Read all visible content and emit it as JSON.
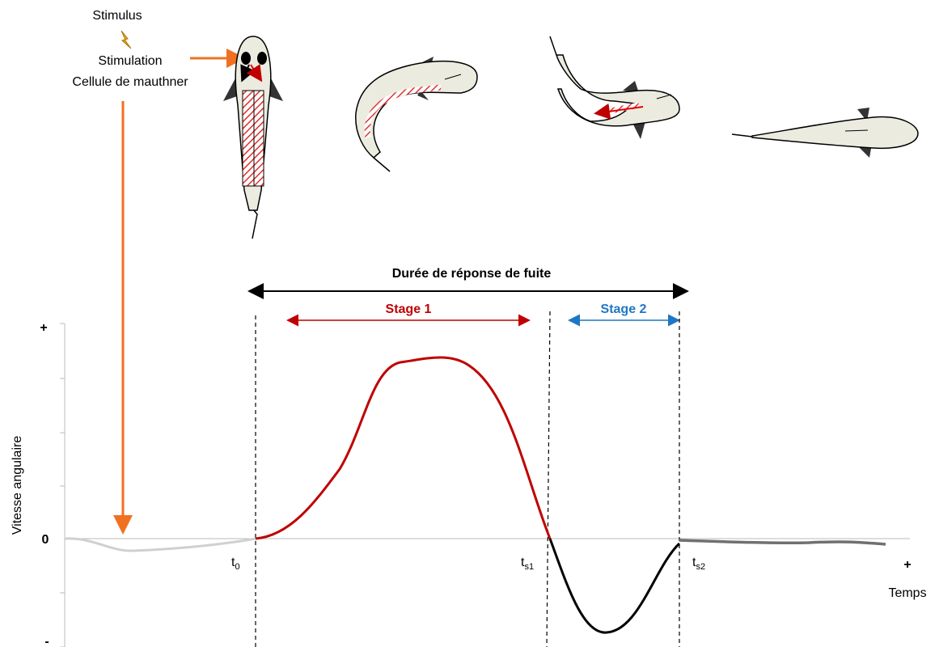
{
  "labels": {
    "stimulus": "Stimulus",
    "stimulation": "Stimulation",
    "cell": "Cellule de mauthner",
    "duration": "Durée de réponse de fuite",
    "stage1": "Stage 1",
    "stage2": "Stage 2",
    "y_plus": "+",
    "y_zero": "0",
    "y_minus": "-",
    "y_axis": "Vitesse angulaire",
    "x_plus": "+",
    "x_axis": "Temps"
  },
  "times": [
    {
      "base": "t",
      "sub": "0"
    },
    {
      "base": "t",
      "sub": "s1"
    },
    {
      "base": "t",
      "sub": "s2"
    }
  ]
}
